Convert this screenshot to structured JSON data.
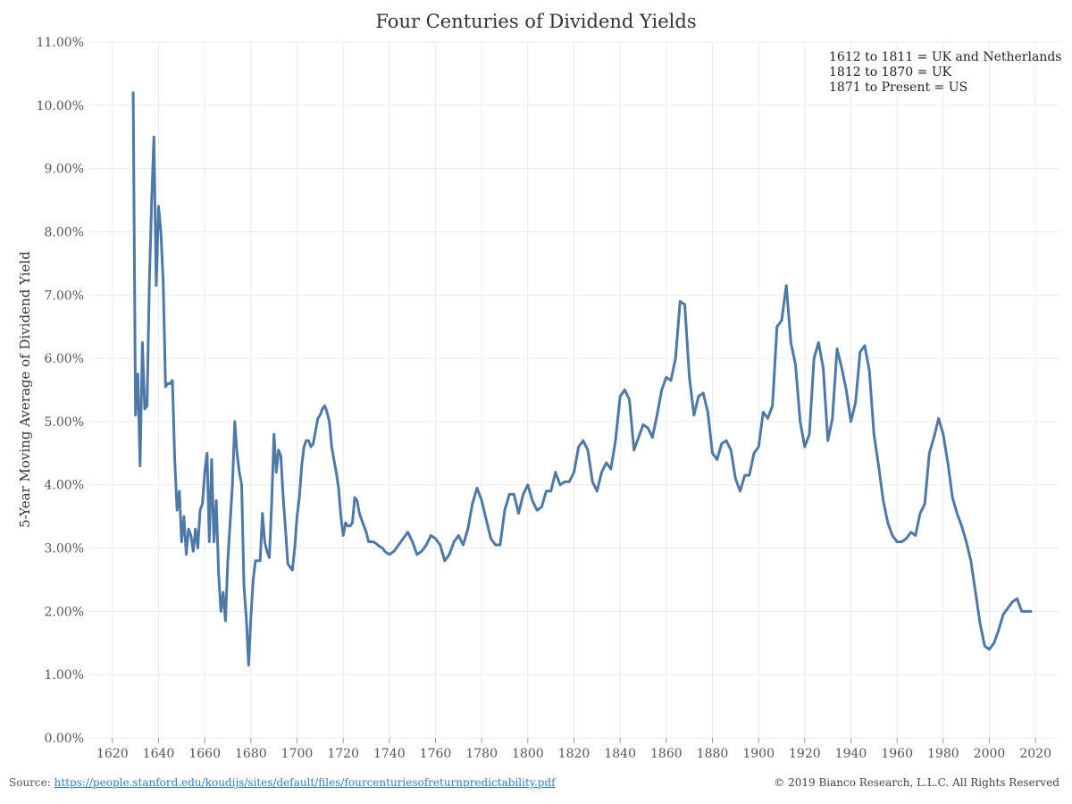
{
  "chart_data": {
    "type": "line",
    "title": "Four Centuries of Dividend Yields",
    "ylabel": "5-Year Moving Average of Dividend Yield",
    "xlabel": "",
    "xlim": [
      1610,
      2030
    ],
    "ylim": [
      0,
      11
    ],
    "x_ticks": [
      "1620",
      "1640",
      "1660",
      "1680",
      "1700",
      "1720",
      "1740",
      "1760",
      "1780",
      "1800",
      "1820",
      "1840",
      "1860",
      "1880",
      "1900",
      "1920",
      "1940",
      "1960",
      "1980",
      "2000",
      "2020"
    ],
    "y_ticks": [
      "0.00%",
      "1.00%",
      "2.00%",
      "3.00%",
      "4.00%",
      "5.00%",
      "6.00%",
      "7.00%",
      "8.00%",
      "9.00%",
      "10.00%",
      "11.00%"
    ],
    "grid": true,
    "line_color": "#4e79a7",
    "annotations": [
      "1612 to 1811 = UK and Netherlands",
      "1812 to 1870 = UK",
      "1871 to Present = US"
    ],
    "series": [
      {
        "x": [
          1629,
          1630,
          1631,
          1632,
          1633,
          1634,
          1635,
          1636,
          1637,
          1638,
          1639,
          1640,
          1641,
          1642,
          1643,
          1644,
          1645,
          1646,
          1647,
          1648,
          1649,
          1650,
          1651,
          1652,
          1653,
          1654,
          1655,
          1656,
          1657,
          1658,
          1659,
          1660,
          1661,
          1662,
          1663,
          1664,
          1665,
          1666,
          1667,
          1668,
          1669,
          1670,
          1671,
          1672,
          1673,
          1674,
          1675,
          1676,
          1677,
          1678,
          1679,
          1680,
          1681,
          1682,
          1683,
          1684,
          1685,
          1686,
          1687,
          1688,
          1689,
          1690,
          1691,
          1692,
          1693,
          1694,
          1695,
          1696,
          1697,
          1698,
          1699,
          1700,
          1701,
          1702,
          1703,
          1704,
          1705,
          1706,
          1707,
          1708,
          1709,
          1710,
          1711,
          1712,
          1713,
          1714,
          1715,
          1716,
          1717,
          1718,
          1719,
          1720,
          1721,
          1722,
          1723,
          1724,
          1725,
          1726,
          1727,
          1728,
          1729,
          1730,
          1731,
          1732,
          1733,
          1734,
          1735,
          1736,
          1737,
          1738,
          1739,
          1740,
          1742,
          1744,
          1746,
          1748,
          1750,
          1752,
          1754,
          1756,
          1758,
          1760,
          1762,
          1764,
          1766,
          1768,
          1770,
          1772,
          1774,
          1776,
          1778,
          1780,
          1782,
          1784,
          1786,
          1788,
          1790,
          1792,
          1794,
          1796,
          1798,
          1800,
          1802,
          1804,
          1806,
          1808,
          1810,
          1812,
          1814,
          1816,
          1818,
          1820,
          1822,
          1824,
          1826,
          1828,
          1830,
          1832,
          1834,
          1836,
          1838,
          1840,
          1842,
          1844,
          1846,
          1848,
          1850,
          1852,
          1854,
          1856,
          1858,
          1860,
          1862,
          1864,
          1866,
          1868,
          1870,
          1872,
          1874,
          1876,
          1878,
          1880,
          1882,
          1884,
          1886,
          1888,
          1890,
          1892,
          1894,
          1896,
          1898,
          1900,
          1902,
          1904,
          1906,
          1908,
          1910,
          1912,
          1914,
          1916,
          1918,
          1920,
          1922,
          1924,
          1926,
          1928,
          1930,
          1932,
          1934,
          1936,
          1938,
          1940,
          1942,
          1944,
          1946,
          1948,
          1950,
          1952,
          1954,
          1956,
          1958,
          1960,
          1962,
          1964,
          1966,
          1968,
          1970,
          1972,
          1974,
          1976,
          1978,
          1980,
          1982,
          1984,
          1986,
          1988,
          1990,
          1992,
          1994,
          1996,
          1998,
          2000,
          2002,
          2004,
          2006,
          2008,
          2010,
          2012,
          2014,
          2016,
          2018
        ],
        "y": [
          10.2,
          5.1,
          5.75,
          4.3,
          6.25,
          5.2,
          5.25,
          7.2,
          8.5,
          9.5,
          7.15,
          8.4,
          8.0,
          7.2,
          5.55,
          5.6,
          5.6,
          5.65,
          4.4,
          3.6,
          3.9,
          3.1,
          3.5,
          2.9,
          3.3,
          3.2,
          2.95,
          3.3,
          3.0,
          3.6,
          3.7,
          4.2,
          4.5,
          3.1,
          4.4,
          3.1,
          3.75,
          2.6,
          2.0,
          2.3,
          1.85,
          2.8,
          3.4,
          4.0,
          5.0,
          4.5,
          4.2,
          4.0,
          2.4,
          1.9,
          1.15,
          1.9,
          2.5,
          2.8,
          2.8,
          2.8,
          3.55,
          3.1,
          2.95,
          2.85,
          3.7,
          4.8,
          4.2,
          4.55,
          4.45,
          3.8,
          3.3,
          2.75,
          2.7,
          2.65,
          3.0,
          3.5,
          3.8,
          4.3,
          4.6,
          4.7,
          4.7,
          4.6,
          4.65,
          4.85,
          5.05,
          5.1,
          5.2,
          5.25,
          5.15,
          5.0,
          4.6,
          4.4,
          4.2,
          3.95,
          3.5,
          3.2,
          3.4,
          3.35,
          3.35,
          3.4,
          3.8,
          3.75,
          3.55,
          3.45,
          3.35,
          3.25,
          3.1,
          3.1,
          3.1,
          3.08,
          3.05,
          3.02,
          3.0,
          2.95,
          2.92,
          2.9,
          2.95,
          3.05,
          3.15,
          3.25,
          3.1,
          2.9,
          2.95,
          3.05,
          3.2,
          3.15,
          3.05,
          2.8,
          2.9,
          3.1,
          3.2,
          3.05,
          3.3,
          3.7,
          3.95,
          3.75,
          3.45,
          3.15,
          3.05,
          3.05,
          3.6,
          3.85,
          3.85,
          3.55,
          3.85,
          4.0,
          3.75,
          3.6,
          3.65,
          3.9,
          3.9,
          4.2,
          4.0,
          4.05,
          4.05,
          4.2,
          4.6,
          4.7,
          4.55,
          4.05,
          3.9,
          4.2,
          4.35,
          4.25,
          4.7,
          5.4,
          5.5,
          5.35,
          4.55,
          4.75,
          4.95,
          4.9,
          4.75,
          5.1,
          5.5,
          5.7,
          5.65,
          6.0,
          6.9,
          6.85,
          5.7,
          5.1,
          5.4,
          5.45,
          5.15,
          4.5,
          4.4,
          4.65,
          4.7,
          4.55,
          4.1,
          3.9,
          4.15,
          4.15,
          4.5,
          4.6,
          5.15,
          5.05,
          5.25,
          6.5,
          6.6,
          7.15,
          6.25,
          5.9,
          5.0,
          4.6,
          4.8,
          6.0,
          6.25,
          5.85,
          4.7,
          5.05,
          6.15,
          5.85,
          5.5,
          5.0,
          5.3,
          6.1,
          6.2,
          5.8,
          4.8,
          4.3,
          3.75,
          3.4,
          3.2,
          3.1,
          3.1,
          3.15,
          3.25,
          3.2,
          3.55,
          3.7,
          4.5,
          4.75,
          5.05,
          4.8,
          4.35,
          3.8,
          3.55,
          3.35,
          3.1,
          2.8,
          2.3,
          1.8,
          1.45,
          1.4,
          1.5,
          1.7,
          1.95,
          2.05,
          2.15,
          2.2,
          2.0,
          2.0,
          2.0
        ]
      }
    ]
  },
  "title": "Four Centuries of Dividend Yields",
  "ylabel": "5-Year Moving Average of Dividend Yield",
  "notes": {
    "line1": "1612 to 1811 = UK and Netherlands",
    "line2": "1812 to 1870 = UK",
    "line3": "1871 to Present = US"
  },
  "footer": {
    "source_prefix": "Source: ",
    "source_url": "https://people.stanford.edu/koudijs/sites/default/files/fourcenturiesofreturnpredictability.pdf",
    "copyright": "© 2019 Bianco Research, L.L.C. All Rights Reserved"
  }
}
